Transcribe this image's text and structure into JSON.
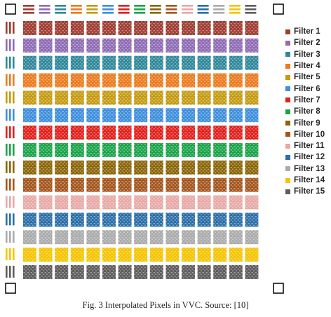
{
  "filters": [
    {
      "label": "Filter 1",
      "color": "#9e3d32"
    },
    {
      "label": "Filter 2",
      "color": "#8f6cb5"
    },
    {
      "label": "Filter 3",
      "color": "#31889b"
    },
    {
      "label": "Filter 4",
      "color": "#ec7b1f"
    },
    {
      "label": "Filter 5",
      "color": "#c49b13"
    },
    {
      "label": "Filter 6",
      "color": "#3f8fdb"
    },
    {
      "label": "Filter 7",
      "color": "#e2201c"
    },
    {
      "label": "Filter 8",
      "color": "#1aa44a"
    },
    {
      "label": "Filter 9",
      "color": "#8a6609"
    },
    {
      "label": "Filter 10",
      "color": "#a4561d"
    },
    {
      "label": "Filter 11",
      "color": "#e7a9a6"
    },
    {
      "label": "Filter 12",
      "color": "#2c6fa8"
    },
    {
      "label": "Filter 13",
      "color": "#ababab"
    },
    {
      "label": "Filter 14",
      "color": "#f5c400"
    },
    {
      "label": "Filter 15",
      "color": "#5d5d5d"
    }
  ],
  "caption": "Fig. 3 Interpolated Pixels in VVC. Source: [10]"
}
